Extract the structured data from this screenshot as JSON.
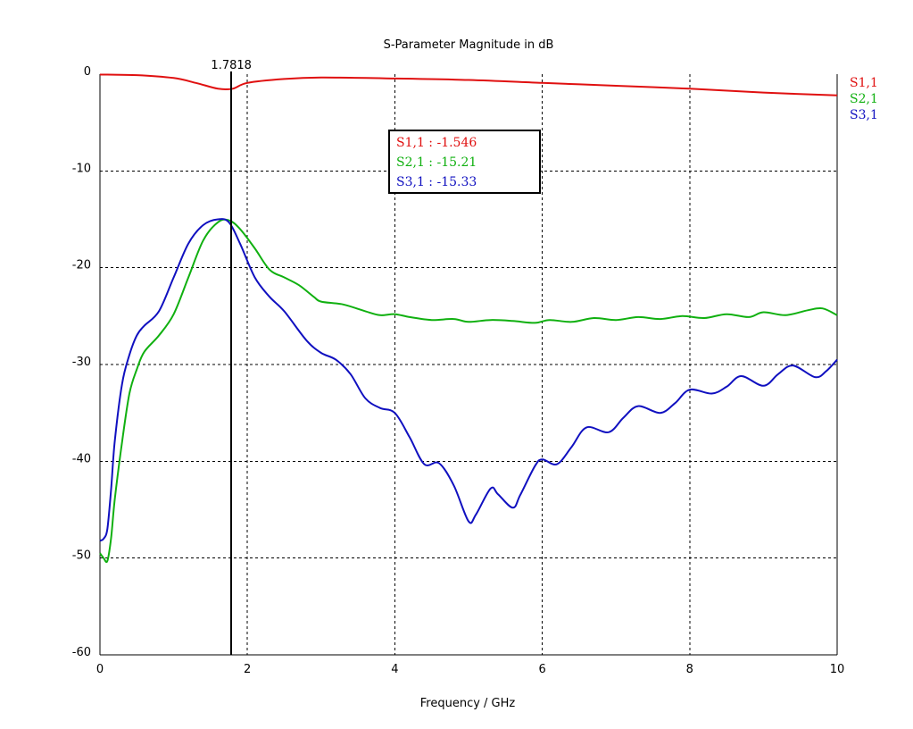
{
  "chart_data": {
    "type": "line",
    "title": "S-Parameter Magnitude in dB",
    "xlabel": "Frequency / GHz",
    "ylabel": "",
    "xlim": [
      0,
      10
    ],
    "ylim": [
      -60,
      0
    ],
    "x_ticks": [
      "0",
      "2",
      "4",
      "6",
      "8",
      "10"
    ],
    "y_ticks": [
      "0",
      "-10",
      "-20",
      "-30",
      "-40",
      "-50",
      "-60"
    ],
    "grid": "dashed",
    "legend_position": "right",
    "marker": {
      "x": 1.7818,
      "label": "1.7818"
    },
    "marker_readout": [
      {
        "text": "S1,1 : -1.546",
        "color": "#e01010"
      },
      {
        "text": "S2,1 : -15.21",
        "color": "#10b010"
      },
      {
        "text": "S3,1 : -15.33",
        "color": "#1010c0"
      }
    ],
    "series": [
      {
        "name": "S1,1",
        "color": "#e01010",
        "x": [
          0,
          0.5,
          1.0,
          1.3,
          1.6,
          1.8,
          2.0,
          2.5,
          3.0,
          4.0,
          5.0,
          6.0,
          7.0,
          8.0,
          9.0,
          10.0
        ],
        "y": [
          -0.05,
          -0.1,
          -0.4,
          -0.9,
          -1.5,
          -1.5,
          -0.9,
          -0.5,
          -0.35,
          -0.45,
          -0.6,
          -0.9,
          -1.2,
          -1.5,
          -1.9,
          -2.2
        ]
      },
      {
        "name": "S2,1",
        "color": "#10b010",
        "x": [
          0,
          0.05,
          0.1,
          0.15,
          0.2,
          0.3,
          0.4,
          0.5,
          0.6,
          0.8,
          1.0,
          1.2,
          1.4,
          1.6,
          1.75,
          1.9,
          2.1,
          2.3,
          2.5,
          2.7,
          2.9,
          3.0,
          3.3,
          3.6,
          3.8,
          4.0,
          4.2,
          4.5,
          4.8,
          5.0,
          5.3,
          5.6,
          5.9,
          6.1,
          6.4,
          6.7,
          7.0,
          7.3,
          7.6,
          7.9,
          8.2,
          8.5,
          8.8,
          9.0,
          9.3,
          9.6,
          9.8,
          10.0
        ],
        "y": [
          -49.5,
          -50,
          -50.3,
          -48,
          -44,
          -38,
          -33,
          -30.5,
          -28.7,
          -27,
          -24.8,
          -21,
          -17.2,
          -15.3,
          -15.1,
          -16,
          -18,
          -20.2,
          -21,
          -21.8,
          -23,
          -23.5,
          -23.8,
          -24.5,
          -24.9,
          -24.8,
          -25.1,
          -25.4,
          -25.3,
          -25.6,
          -25.4,
          -25.5,
          -25.7,
          -25.4,
          -25.6,
          -25.2,
          -25.4,
          -25.1,
          -25.3,
          -25.0,
          -25.2,
          -24.8,
          -25.1,
          -24.6,
          -24.9,
          -24.4,
          -24.2,
          -24.9
        ]
      },
      {
        "name": "S3,1",
        "color": "#1010c0",
        "x": [
          0,
          0.05,
          0.1,
          0.15,
          0.2,
          0.3,
          0.4,
          0.5,
          0.6,
          0.8,
          1.0,
          1.2,
          1.4,
          1.6,
          1.75,
          1.9,
          2.1,
          2.3,
          2.5,
          2.8,
          3.0,
          3.2,
          3.4,
          3.6,
          3.8,
          4.0,
          4.2,
          4.4,
          4.6,
          4.8,
          5.0,
          5.1,
          5.3,
          5.4,
          5.6,
          5.7,
          5.9,
          6.0,
          6.2,
          6.4,
          6.6,
          6.9,
          7.1,
          7.3,
          7.6,
          7.8,
          8.0,
          8.3,
          8.5,
          8.7,
          9.0,
          9.2,
          9.4,
          9.7,
          9.85,
          10.0
        ],
        "y": [
          -48.2,
          -48,
          -47,
          -43,
          -38,
          -32,
          -29,
          -27,
          -26,
          -24.5,
          -21,
          -17.5,
          -15.6,
          -15.0,
          -15.3,
          -17.5,
          -21,
          -23,
          -24.5,
          -27.5,
          -28.8,
          -29.5,
          -31,
          -33.5,
          -34.5,
          -35,
          -37.5,
          -40.3,
          -40.2,
          -42.5,
          -46.2,
          -45.5,
          -42.8,
          -43.4,
          -44.8,
          -43.5,
          -40.5,
          -39.8,
          -40.3,
          -38.5,
          -36.5,
          -37.0,
          -35.5,
          -34.3,
          -35.0,
          -34.0,
          -32.6,
          -33.0,
          -32.3,
          -31.2,
          -32.2,
          -31.0,
          -30.1,
          -31.3,
          -30.7,
          -29.5
        ]
      }
    ]
  }
}
